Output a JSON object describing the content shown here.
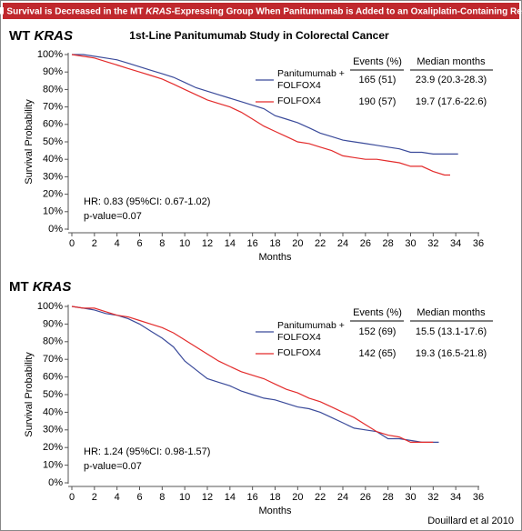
{
  "banner": {
    "before": "Overall Survival is Decreased in the MT ",
    "gene": "KRAS",
    "after": "-Expressing Group When Panitumumab is Added to an Oxaliplatin-Containing Regimen"
  },
  "source": "Douillard et al 2010",
  "chart_data": [
    {
      "type": "line",
      "panel_label": {
        "prefix": "WT",
        "gene": "KRAS"
      },
      "title": "1st-Line Panitumumab Study in Colorectal Cancer",
      "x_label": "Months",
      "y_label": "Survival Probability",
      "xlim": [
        0,
        36
      ],
      "xticks": [
        0,
        2,
        4,
        6,
        8,
        10,
        12,
        14,
        16,
        18,
        20,
        22,
        24,
        26,
        28,
        30,
        32,
        34,
        36
      ],
      "ylim": [
        0,
        100
      ],
      "yticks": [
        {
          "value": 0,
          "label": "0%"
        },
        {
          "value": 10,
          "label": "10%"
        },
        {
          "value": 20,
          "label": "20%"
        },
        {
          "value": 30,
          "label": "30%"
        },
        {
          "value": 40,
          "label": "40%"
        },
        {
          "value": 50,
          "label": "50%"
        },
        {
          "value": 60,
          "label": "60%"
        },
        {
          "value": 70,
          "label": "70%"
        },
        {
          "value": 80,
          "label": "80%"
        },
        {
          "value": 90,
          "label": "90%"
        },
        {
          "value": 100,
          "label": "100%"
        }
      ],
      "grid": false,
      "table_headers": [
        "Events (%)",
        "Median months"
      ],
      "annotations": [
        "HR: 0.83 (95%CI: 0.67-1.02)",
        "p-value=0.07"
      ],
      "series": [
        {
          "name": "Panitumumab + FOLFOX4",
          "color": "#3a4a9a",
          "events": "165 (51)",
          "median": "23.9 (20.3-28.3)",
          "x": [
            0,
            1,
            2,
            3,
            4,
            5,
            6,
            7,
            8,
            9,
            10,
            11,
            12,
            13,
            14,
            15,
            16,
            17,
            18,
            19,
            20,
            21,
            22,
            23,
            24,
            25,
            26,
            27,
            28,
            29,
            30,
            31,
            32,
            33,
            34.2
          ],
          "values": [
            100,
            100,
            99,
            98,
            97,
            95,
            93,
            91,
            89,
            87,
            84,
            81,
            79,
            77,
            75,
            73,
            71,
            69,
            65,
            63,
            61,
            58,
            55,
            53,
            51,
            50,
            49,
            48,
            47,
            46,
            44,
            44,
            43,
            43,
            43
          ]
        },
        {
          "name": "FOLFOX4",
          "color": "#e32b2b",
          "events": "190 (57)",
          "median": "19.7 (17.6-22.6)",
          "x": [
            0,
            1,
            2,
            3,
            4,
            5,
            6,
            7,
            8,
            9,
            10,
            11,
            12,
            13,
            14,
            15,
            16,
            17,
            18,
            19,
            20,
            21,
            22,
            23,
            24,
            25,
            26,
            27,
            28,
            29,
            30,
            31,
            32,
            33,
            33.5
          ],
          "values": [
            100,
            99,
            98,
            96,
            94,
            92,
            90,
            88,
            86,
            83,
            80,
            77,
            74,
            72,
            70,
            67,
            63,
            59,
            56,
            53,
            50,
            49,
            47,
            45,
            42,
            41,
            40,
            40,
            39,
            38,
            36,
            36,
            33,
            31,
            31
          ]
        }
      ]
    },
    {
      "type": "line",
      "panel_label": {
        "prefix": "MT",
        "gene": "KRAS"
      },
      "x_label": "Months",
      "y_label": "Survival Probability",
      "xlim": [
        0,
        36
      ],
      "xticks": [
        0,
        2,
        4,
        6,
        8,
        10,
        12,
        14,
        16,
        18,
        20,
        22,
        24,
        26,
        28,
        30,
        32,
        34,
        36
      ],
      "ylim": [
        0,
        100
      ],
      "yticks": [
        {
          "value": 0,
          "label": "0%"
        },
        {
          "value": 10,
          "label": "10%"
        },
        {
          "value": 20,
          "label": "20%"
        },
        {
          "value": 30,
          "label": "30%"
        },
        {
          "value": 40,
          "label": "40%"
        },
        {
          "value": 50,
          "label": "50%"
        },
        {
          "value": 60,
          "label": "60%"
        },
        {
          "value": 70,
          "label": "70%"
        },
        {
          "value": 80,
          "label": "80%"
        },
        {
          "value": 90,
          "label": "90%"
        },
        {
          "value": 100,
          "label": "100%"
        }
      ],
      "grid": false,
      "table_headers": [
        "Events (%)",
        "Median months"
      ],
      "annotations": [
        "HR: 1.24 (95%CI: 0.98-1.57)",
        "p-value=0.07"
      ],
      "series": [
        {
          "name": "Panitumumab + FOLFOX4",
          "color": "#3a4a9a",
          "events": "152 (69)",
          "median": "15.5 (13.1-17.6)",
          "x": [
            0,
            1,
            2,
            3,
            4,
            5,
            6,
            7,
            8,
            9,
            10,
            11,
            12,
            13,
            14,
            15,
            16,
            17,
            18,
            19,
            20,
            21,
            22,
            23,
            24,
            25,
            26,
            27,
            28,
            29,
            30,
            31,
            32,
            32.5
          ],
          "values": [
            100,
            99,
            98,
            96,
            95,
            93,
            90,
            86,
            82,
            77,
            69,
            64,
            59,
            57,
            55,
            52,
            50,
            48,
            47,
            45,
            43,
            42,
            40,
            37,
            34,
            31,
            30,
            29,
            25,
            25,
            24,
            23,
            23,
            23
          ]
        },
        {
          "name": "FOLFOX4",
          "color": "#e32b2b",
          "events": "142 (65)",
          "median": "19.3 (16.5-21.8)",
          "x": [
            0,
            1,
            2,
            3,
            4,
            5,
            6,
            7,
            8,
            9,
            10,
            11,
            12,
            13,
            14,
            15,
            16,
            17,
            18,
            19,
            20,
            21,
            22,
            23,
            24,
            25,
            26,
            27,
            28,
            29,
            30,
            31,
            32
          ],
          "values": [
            100,
            99,
            99,
            97,
            95,
            94,
            92,
            90,
            88,
            85,
            81,
            77,
            73,
            69,
            66,
            63,
            61,
            59,
            56,
            53,
            51,
            48,
            46,
            43,
            40,
            37,
            33,
            29,
            27,
            26,
            23,
            23,
            23
          ]
        }
      ]
    }
  ]
}
